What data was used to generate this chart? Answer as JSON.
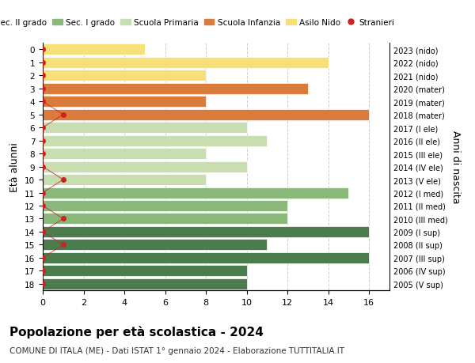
{
  "ages": [
    18,
    17,
    16,
    15,
    14,
    13,
    12,
    11,
    10,
    9,
    8,
    7,
    6,
    5,
    4,
    3,
    2,
    1,
    0
  ],
  "right_labels": [
    "2005 (V sup)",
    "2006 (IV sup)",
    "2007 (III sup)",
    "2008 (II sup)",
    "2009 (I sup)",
    "2010 (III med)",
    "2011 (II med)",
    "2012 (I med)",
    "2013 (V ele)",
    "2014 (IV ele)",
    "2015 (III ele)",
    "2016 (II ele)",
    "2017 (I ele)",
    "2018 (mater)",
    "2019 (mater)",
    "2020 (mater)",
    "2021 (nido)",
    "2022 (nido)",
    "2023 (nido)"
  ],
  "values": [
    10,
    10,
    16,
    11,
    16,
    12,
    12,
    15,
    8,
    10,
    8,
    11,
    10,
    16,
    8,
    13,
    8,
    14,
    5
  ],
  "bar_colors": [
    "#4a7c4e",
    "#4a7c4e",
    "#4a7c4e",
    "#4a7c4e",
    "#4a7c4e",
    "#8ab87a",
    "#8ab87a",
    "#8ab87a",
    "#c8ddb0",
    "#c8ddb0",
    "#c8ddb0",
    "#c8ddb0",
    "#c8ddb0",
    "#d97b3a",
    "#d97b3a",
    "#d97b3a",
    "#f5e07a",
    "#f5e07a",
    "#f5e07a"
  ],
  "stranieri_x": [
    0,
    0,
    0,
    1,
    0,
    1,
    0,
    0,
    1,
    0,
    0,
    0,
    0,
    1,
    0,
    0,
    0,
    0,
    0
  ],
  "legend_labels": [
    "Sec. II grado",
    "Sec. I grado",
    "Scuola Primaria",
    "Scuola Infanzia",
    "Asilo Nido",
    "Stranieri"
  ],
  "legend_colors": [
    "#4a7c4e",
    "#8ab87a",
    "#c8ddb0",
    "#d97b3a",
    "#f5e07a",
    "#cc2222"
  ],
  "title": "Popolazione per età scolastica - 2024",
  "subtitle": "COMUNE DI ITALA (ME) - Dati ISTAT 1° gennaio 2024 - Elaborazione TUTTITALIA.IT",
  "ylabel": "Età alunni",
  "right_ylabel": "Anni di nascita",
  "xlabel_values": [
    0,
    2,
    4,
    6,
    8,
    10,
    12,
    14,
    16
  ],
  "xlim": [
    0,
    17
  ],
  "ylim_top": 18.5,
  "ylim_bottom": -0.5,
  "background_color": "#ffffff",
  "grid_color": "#cccccc"
}
